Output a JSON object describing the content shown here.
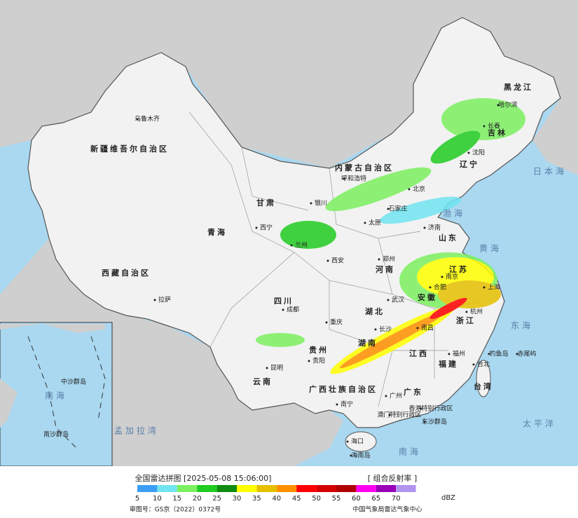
{
  "map": {
    "labels": [
      "新疆维吾尔自治区",
      "乌鲁木齐",
      "西藏自治区",
      "拉萨",
      "青海",
      "甘肃",
      "内蒙古自治区",
      "黑龙江",
      "吉林",
      "辽宁",
      "哈尔滨",
      "长春",
      "沈阳",
      "北京",
      "呼和浩特",
      "银川",
      "西宁",
      "兰州",
      "西安",
      "郑州",
      "济南",
      "太原",
      "石家庄",
      "南京",
      "上海",
      "合肥",
      "武汉",
      "杭州",
      "长沙",
      "南昌",
      "福州",
      "台北",
      "贵阳",
      "昆明",
      "成都",
      "重庆",
      "南宁",
      "广州",
      "海口",
      "四川",
      "云南",
      "贵州",
      "湖北",
      "广西壮族自治区",
      "香港特别行政区",
      "澳门特别行政区",
      "台湾",
      "广东",
      "福建",
      "江西",
      "山东",
      "河南",
      "江苏",
      "安徽",
      "浙江",
      "湖南",
      "日本海",
      "渤海",
      "黄海",
      "东海",
      "南海",
      "太平洋",
      "孟加拉湾",
      "钓鱼岛",
      "赤尾屿",
      "东沙群岛",
      "海南岛"
    ],
    "inset_labels": [
      "南海",
      "中沙群岛",
      "南沙群岛"
    ]
  },
  "legend": {
    "title": "全国雷达拼图 [2025-05-08 15:06:00]",
    "product": "[ 组合反射率 ]",
    "unit": "dBZ",
    "ticks": [
      5,
      10,
      15,
      20,
      25,
      30,
      35,
      40,
      45,
      50,
      55,
      60,
      65,
      70
    ],
    "colors": [
      "#3d9ef5",
      "#70e4f0",
      "#7cf060",
      "#20cc20",
      "#108c10",
      "#ffff00",
      "#e6c000",
      "#ff9000",
      "#ff0000",
      "#d40000",
      "#b00000",
      "#ff00f0",
      "#9a00b8",
      "#b094f0"
    ]
  },
  "footer": {
    "left": "审图号：GS京（2022）0372号",
    "right": "中国气象局雷达气象中心"
  }
}
